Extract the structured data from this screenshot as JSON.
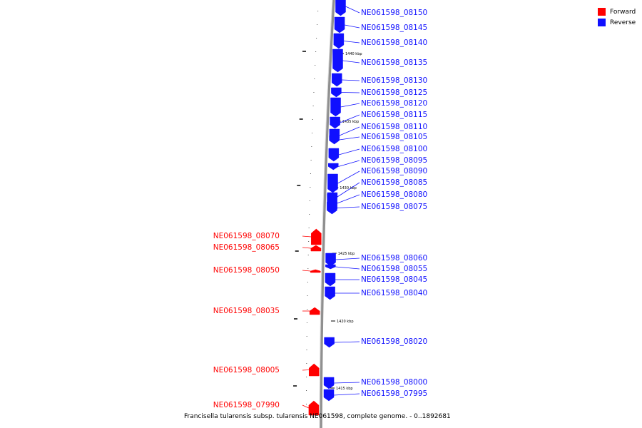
{
  "legend": {
    "forward_label": "Forward",
    "reverse_label": "Reverse",
    "forward_color": "#ff0000",
    "reverse_color": "#1010ff"
  },
  "caption": "Francisella tularensis subsp. tularensis NE061598, complete genome. - 0..1892681",
  "ticks": [
    "1440 kbp",
    "1435 kbp",
    "1430 kbp",
    "1425 kbp",
    "1420 kbp",
    "1415 kbp"
  ],
  "genes": [
    {
      "name": "NE061598_08150",
      "strand": "Reverse"
    },
    {
      "name": "NE061598_08145",
      "strand": "Reverse"
    },
    {
      "name": "NE061598_08140",
      "strand": "Reverse"
    },
    {
      "name": "NE061598_08135",
      "strand": "Reverse"
    },
    {
      "name": "NE061598_08130",
      "strand": "Reverse"
    },
    {
      "name": "NE061598_08125",
      "strand": "Reverse"
    },
    {
      "name": "NE061598_08120",
      "strand": "Reverse"
    },
    {
      "name": "NE061598_08115",
      "strand": "Reverse"
    },
    {
      "name": "NE061598_08110",
      "strand": "Reverse"
    },
    {
      "name": "NE061598_08105",
      "strand": "Reverse"
    },
    {
      "name": "NE061598_08100",
      "strand": "Reverse"
    },
    {
      "name": "NE061598_08095",
      "strand": "Reverse"
    },
    {
      "name": "NE061598_08090",
      "strand": "Reverse"
    },
    {
      "name": "NE061598_08085",
      "strand": "Reverse"
    },
    {
      "name": "NE061598_08080",
      "strand": "Reverse"
    },
    {
      "name": "NE061598_08075",
      "strand": "Reverse"
    },
    {
      "name": "NE061598_08070",
      "strand": "Forward"
    },
    {
      "name": "NE061598_08065",
      "strand": "Forward"
    },
    {
      "name": "NE061598_08060",
      "strand": "Reverse"
    },
    {
      "name": "NE061598_08055",
      "strand": "Reverse"
    },
    {
      "name": "NE061598_08050",
      "strand": "Forward"
    },
    {
      "name": "NE061598_08045",
      "strand": "Reverse"
    },
    {
      "name": "NE061598_08040",
      "strand": "Reverse"
    },
    {
      "name": "NE061598_08035",
      "strand": "Forward"
    },
    {
      "name": "NE061598_08020",
      "strand": "Reverse"
    },
    {
      "name": "NE061598_08005",
      "strand": "Forward"
    },
    {
      "name": "NE061598_08000",
      "strand": "Reverse"
    },
    {
      "name": "NE061598_07995",
      "strand": "Reverse"
    },
    {
      "name": "NE061598_07990",
      "strand": "Forward"
    }
  ]
}
